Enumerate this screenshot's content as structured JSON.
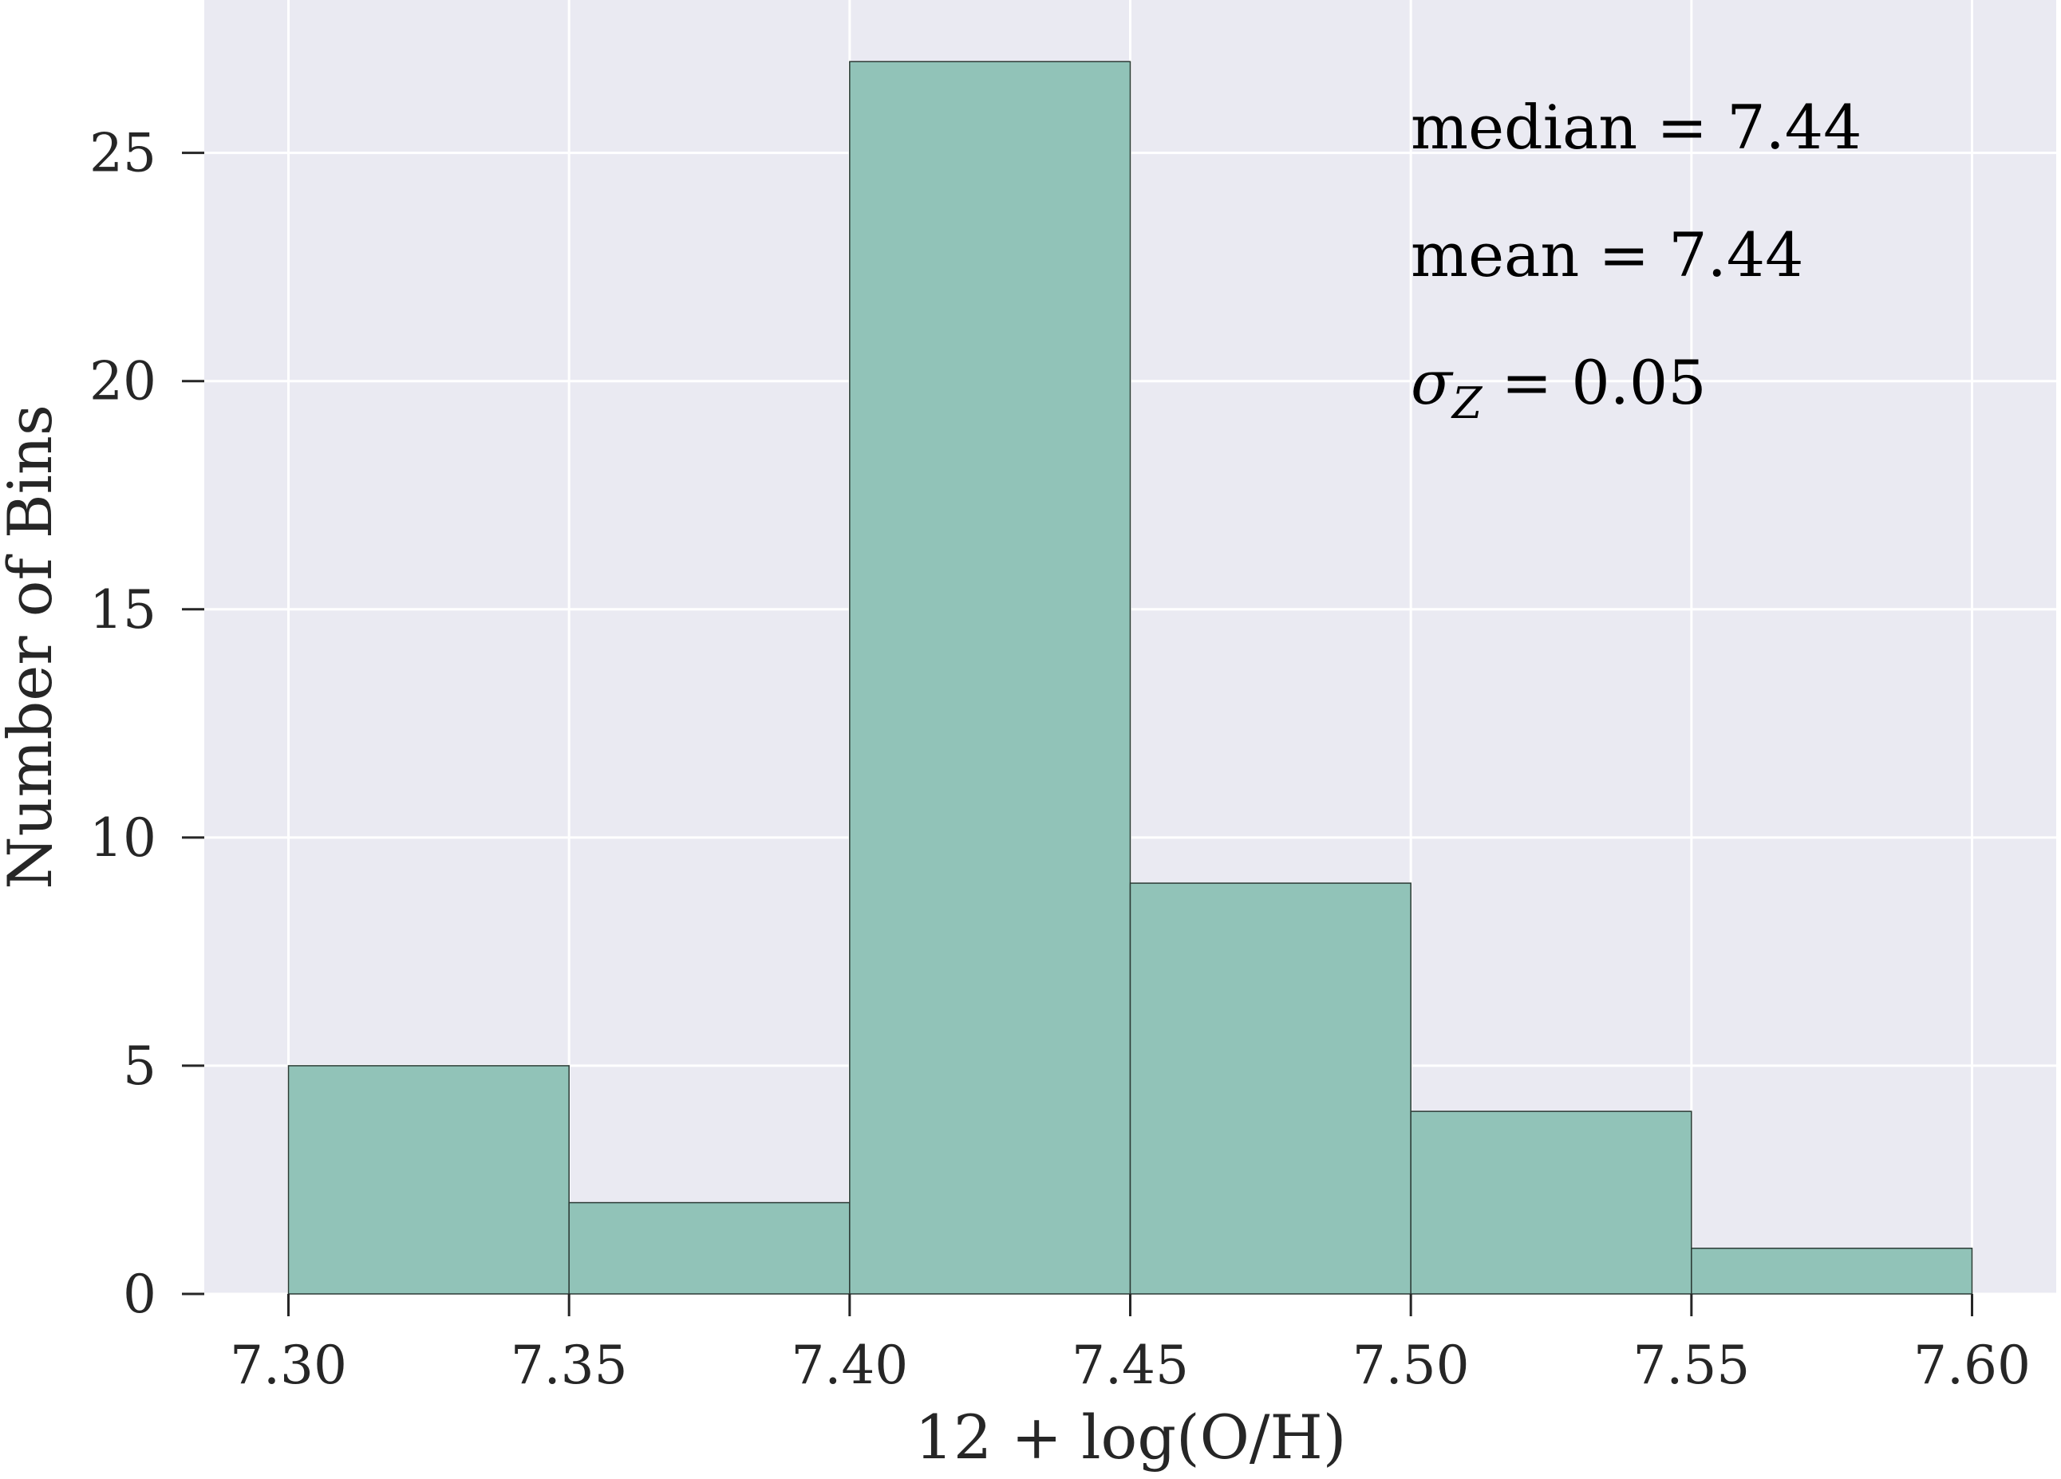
{
  "chart_data": {
    "type": "bar",
    "subtype": "histogram",
    "bin_edges": [
      7.3,
      7.35,
      7.4,
      7.45,
      7.5,
      7.55,
      7.6
    ],
    "values": [
      5,
      2,
      27,
      9,
      4,
      1
    ],
    "xlabel": "12 + log(O/H)",
    "ylabel": "Number of Bins",
    "xticks": [
      "7.30",
      "7.35",
      "7.40",
      "7.45",
      "7.50",
      "7.55",
      "7.60"
    ],
    "yticks": [
      "0",
      "5",
      "10",
      "15",
      "20",
      "25"
    ],
    "xlim": [
      7.285,
      7.615
    ],
    "ylim": [
      0,
      28.35
    ],
    "grid": true,
    "annotations": {
      "median": "median = 7.44",
      "mean": "mean = 7.44",
      "sigma_symbol": "σ",
      "sigma_sub": "Z",
      "sigma_rest": " = 0.05"
    },
    "colors": {
      "background": "#eaeaf2",
      "grid": "#ffffff",
      "bar_fill": "#91c3b8",
      "bar_edge": "#2b3a35"
    }
  }
}
